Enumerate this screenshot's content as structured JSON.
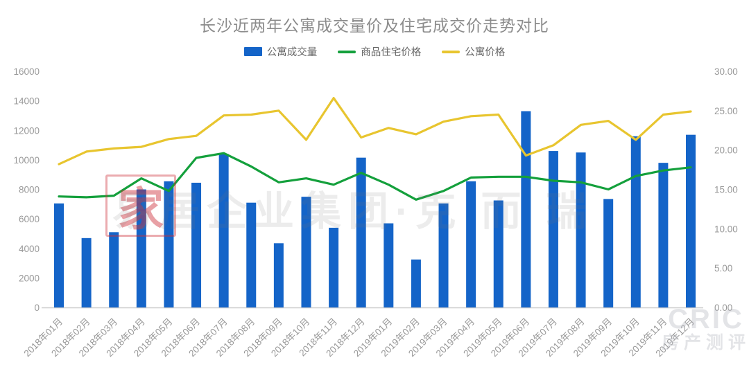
{
  "title": "长沙近两年公寓成交量价及住宅成交价走势对比",
  "watermarks": {
    "seal_text": "家",
    "center_text": "易居企业集团·克 而 瑞",
    "cric_line1": "CRIC",
    "cric_line2": "房产测评"
  },
  "colors": {
    "bar_blue": "#1464C8",
    "line_green": "#14A03C",
    "line_yellow": "#E8C52F",
    "axis_text": "#999999",
    "title_text": "#8C8C8C",
    "baseline": "#CCCCCC",
    "seal_red": "#CD2D37"
  },
  "chart_data": {
    "type": "bar",
    "subtype": "bar + two lines combo, dual y-axes",
    "title": "长沙近两年公寓成交量价及住宅成交价走势对比",
    "legend_position": "top-center",
    "grid": false,
    "categories": [
      "2018年01月",
      "2018年02月",
      "2018年03月",
      "2018年04月",
      "2018年05月",
      "2018年06月",
      "2018年07月",
      "2018年08月",
      "2018年09月",
      "2018年10月",
      "2018年11月",
      "2018年12月",
      "2019年01月",
      "2019年02月",
      "2019年03月",
      "2019年04月",
      "2019年05月",
      "2019年06月",
      "2019年07月",
      "2019年08月",
      "2019年09月",
      "2019年10月",
      "2019年11月",
      "2019年12月"
    ],
    "series": [
      {
        "name": "公寓成交量",
        "type": "bar",
        "axis": "left",
        "color": "#1464C8",
        "values": [
          7050,
          4700,
          5100,
          8000,
          8550,
          8450,
          10400,
          7100,
          4350,
          7500,
          5400,
          10150,
          5700,
          3250,
          7050,
          8550,
          7250,
          13300,
          10600,
          10500,
          7350,
          11600,
          9800,
          11700
        ]
      },
      {
        "name": "商品住宅价格",
        "type": "line",
        "axis": "right",
        "color": "#14A03C",
        "values": [
          14.1,
          14.0,
          14.2,
          16.4,
          14.8,
          19.0,
          19.6,
          17.9,
          15.9,
          16.4,
          15.6,
          17.1,
          15.6,
          13.7,
          14.8,
          16.5,
          16.6,
          16.6,
          16.1,
          15.9,
          15.0,
          16.7,
          17.4,
          17.8
        ]
      },
      {
        "name": "公寓价格",
        "type": "line",
        "axis": "right",
        "color": "#E8C52F",
        "values": [
          18.2,
          19.8,
          20.2,
          20.4,
          21.4,
          21.8,
          24.4,
          24.5,
          25.0,
          21.3,
          26.6,
          21.6,
          22.8,
          22.0,
          23.6,
          24.3,
          24.5,
          19.3,
          20.6,
          23.2,
          23.7,
          21.3,
          24.5,
          24.9
        ]
      }
    ],
    "left_axis": {
      "min": 0,
      "max": 16000,
      "ticks": [
        16000,
        14000,
        12000,
        10000,
        8000,
        6000,
        4000,
        2000,
        0
      ]
    },
    "right_axis": {
      "min": 0,
      "max": 30,
      "ticks": [
        "30.00",
        "25.00",
        "20.00",
        "15.00",
        "10.00",
        "5.00",
        "0.00"
      ]
    }
  }
}
